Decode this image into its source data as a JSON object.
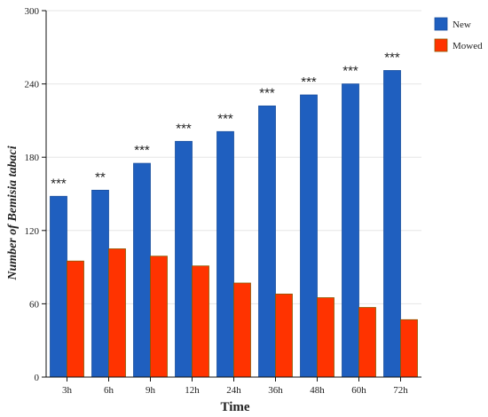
{
  "chart_data": {
    "type": "bar",
    "xlabel": "Time",
    "ylabel": "Number of Bemisia tabaci",
    "ylim": [
      0,
      300
    ],
    "yticks": [
      0,
      60,
      120,
      180,
      240,
      300
    ],
    "categories": [
      "3h",
      "6h",
      "9h",
      "12h",
      "24h",
      "36h",
      "48h",
      "60h",
      "72h"
    ],
    "series": [
      {
        "name": "New",
        "color": "#1f5fbf",
        "values": [
          148,
          153,
          175,
          193,
          201,
          222,
          231,
          240,
          251
        ]
      },
      {
        "name": "Mowed",
        "color": "#ff3300",
        "values": [
          95,
          105,
          99,
          91,
          77,
          68,
          65,
          57,
          47
        ]
      }
    ],
    "significance": [
      "***",
      "**",
      "***",
      "***",
      "***",
      "***",
      "***",
      "***",
      "***"
    ],
    "legend_position": "top-right",
    "grid": true
  }
}
